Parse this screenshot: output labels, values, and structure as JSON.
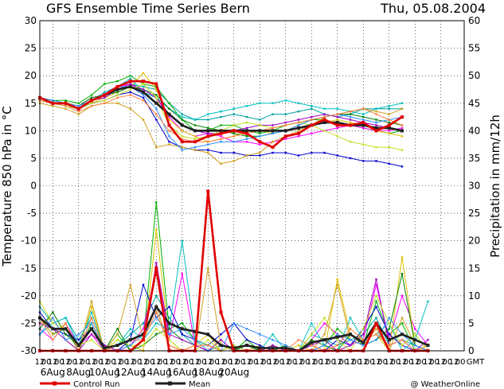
{
  "header": {
    "title": "GFS Ensemble Time Series Bern",
    "date": "Thu, 05.08.2004"
  },
  "footer": {
    "legend_control": "Control Run",
    "legend_mean": "Mean",
    "credit": "@ WeatherOnline"
  },
  "colors": {
    "control": "#e00000",
    "mean": "#202020",
    "members": [
      "#00a0a0",
      "#00b000",
      "#ff00ff",
      "#e0c000",
      "#0000d0",
      "#00c0c0",
      "#d0a020",
      "#008000",
      "#a000c0",
      "#c0e020",
      "#3090ff",
      "#ff8040"
    ]
  },
  "chart_data": {
    "type": "line",
    "x_unit": "hours from 05Aug 12 GMT, 12-hourly",
    "x_tick_labels": [
      "12",
      "00",
      "12",
      "00",
      "12",
      "00",
      "12",
      "00",
      "12",
      "00",
      "12",
      "00",
      "12",
      "00",
      "12",
      "00",
      "12",
      "00",
      "12",
      "00",
      "12",
      "00",
      "12",
      "00",
      "12",
      "00",
      "12",
      "00",
      "12",
      "00",
      "12",
      "00",
      "12",
      "00",
      "12",
      "00",
      "12",
      "00",
      "12",
      "00",
      "12",
      "00",
      "12",
      "00",
      "12",
      "00",
      "12",
      "00",
      "12",
      "00",
      "12",
      "00",
      "12",
      "00",
      "12",
      "00",
      "12",
      "00",
      "12",
      "00",
      "12",
      "00",
      "12",
      "00",
      "12",
      "00"
    ],
    "x_tick_suffix": "GMT",
    "date_labels": [
      "6Aug",
      "8Aug",
      "10Aug",
      "12Aug",
      "14Aug",
      "16Aug",
      "18Aug",
      "20Aug"
    ],
    "ylabel_left": "Temperature 850 hPa in °C",
    "ylabel_right": "Precipitation in mm/12h",
    "ylim_left": [
      -30,
      30
    ],
    "ylim_right": [
      0,
      60
    ],
    "yticks_left": [
      30,
      25,
      20,
      15,
      10,
      5,
      0,
      -5,
      -10,
      -15,
      -20,
      -25,
      -30
    ],
    "yticks_right": [
      60,
      55,
      50,
      45,
      40,
      35,
      30,
      25,
      20,
      15,
      10,
      5,
      0
    ],
    "temperature": {
      "control": [
        16,
        15,
        15,
        14,
        15.5,
        16.5,
        18,
        19,
        19,
        18.5,
        11,
        8,
        8,
        9,
        9.5,
        10,
        9.5,
        8,
        7,
        9,
        9.5,
        11,
        12,
        11,
        11,
        11.5,
        10,
        11,
        12.5
      ],
      "mean": [
        16,
        15,
        15,
        14,
        15.5,
        16.5,
        17.5,
        18,
        17,
        15,
        13,
        11,
        10,
        10,
        10,
        10,
        10,
        10,
        10,
        10,
        10.5,
        11,
        11.5,
        11.5,
        11,
        11,
        10.5,
        10.5,
        10
      ],
      "members": [
        [
          16,
          15.5,
          15,
          14.5,
          16,
          16.5,
          18,
          18.5,
          18,
          17.5,
          15,
          13,
          12,
          12,
          12.5,
          13,
          12.5,
          12,
          13,
          13,
          13.5,
          14,
          13,
          12.5,
          13,
          14,
          14,
          14,
          14
        ],
        [
          16,
          15.5,
          15.5,
          15,
          16.5,
          18.5,
          19,
          20,
          18.5,
          18,
          15,
          12,
          10,
          10,
          11,
          11,
          10,
          9.5,
          10,
          11,
          11.5,
          12,
          12,
          11,
          11,
          10.5,
          10,
          9.5,
          10
        ],
        [
          16,
          15,
          15,
          14.5,
          16,
          16.5,
          18,
          18.5,
          17,
          16,
          12.5,
          10,
          9,
          9.5,
          9,
          8,
          8,
          7.5,
          8,
          8.5,
          9,
          9.5,
          10,
          10.5,
          11,
          10.5,
          10,
          10,
          10.5
        ],
        [
          15.5,
          15,
          14.5,
          14,
          15,
          16,
          17,
          18,
          20.5,
          17.5,
          12,
          10,
          9,
          8,
          8.5,
          9,
          10,
          10,
          9.5,
          10,
          10.5,
          11,
          11.5,
          12,
          11.5,
          11,
          10,
          9.5,
          9
        ],
        [
          15.5,
          15,
          15,
          14,
          15,
          15.5,
          16.5,
          17,
          16,
          12,
          8,
          7,
          6.5,
          6.5,
          6,
          6,
          5.5,
          5.5,
          6,
          6,
          5.5,
          6,
          6,
          5.5,
          5,
          4.5,
          4.5,
          4,
          3.5
        ],
        [
          16,
          15,
          14.5,
          14,
          15.5,
          17,
          18,
          19.5,
          17,
          16,
          14,
          12.5,
          12,
          13,
          13.5,
          14,
          14.5,
          15,
          15,
          15.5,
          15,
          14.5,
          14,
          14,
          13.5,
          13,
          14,
          14.5,
          15
        ],
        [
          15,
          14.5,
          14,
          13,
          14.5,
          15,
          15,
          14,
          12,
          7,
          7.5,
          7,
          6.5,
          6,
          4,
          4.5,
          5.5,
          6,
          8,
          9,
          10,
          11,
          12.5,
          13,
          13.5,
          14,
          13.5,
          13,
          14
        ],
        [
          16,
          15,
          15,
          14.5,
          16,
          16.5,
          17,
          18,
          17.5,
          16.5,
          14,
          12,
          11,
          10.5,
          10,
          9.5,
          9,
          9,
          9.5,
          10,
          11,
          12,
          12.5,
          13,
          13,
          12.5,
          12,
          11.5,
          11
        ],
        [
          16,
          15,
          15,
          14,
          15.5,
          16,
          17.5,
          18.5,
          17.5,
          16,
          13,
          11,
          10,
          9.5,
          9.5,
          10,
          10.5,
          11,
          11,
          11.5,
          12,
          12.5,
          13,
          12.5,
          12,
          11.5,
          11,
          10.5,
          10
        ],
        [
          15.5,
          15,
          14.5,
          14,
          15,
          15.5,
          16.5,
          17.5,
          18.5,
          16,
          11,
          9,
          8.5,
          9,
          10,
          11,
          11.5,
          11,
          10.5,
          11,
          11.5,
          11,
          10,
          9,
          8,
          7.5,
          7,
          7,
          6.5
        ],
        [
          16,
          15.5,
          15,
          14.5,
          15.5,
          16.5,
          18,
          18,
          16.5,
          14,
          9,
          6.5,
          7,
          7.5,
          8,
          8,
          8.5,
          9,
          9.5,
          10,
          11,
          12,
          12.5,
          13,
          12.5,
          12,
          11.5,
          12,
          12.5
        ],
        [
          15.5,
          15,
          14.5,
          13.5,
          14.5,
          15,
          16,
          16.5,
          15.5,
          13,
          10,
          8.5,
          8,
          8,
          8.5,
          9,
          9.5,
          10,
          10.5,
          11,
          11.5,
          12,
          12.5,
          13,
          13.5,
          14,
          13,
          12,
          11
        ]
      ]
    },
    "precipitation": {
      "control": [
        0,
        0,
        0,
        0,
        0,
        0,
        0,
        0,
        2,
        15,
        0,
        0,
        0,
        29,
        7,
        0,
        0,
        0,
        0,
        0,
        0,
        0,
        0,
        0,
        0,
        0,
        5,
        0,
        0,
        0,
        0
      ],
      "mean": [
        6,
        4,
        4,
        1,
        4,
        0.5,
        1,
        2,
        3,
        8,
        5,
        4,
        3.5,
        3,
        1,
        0.5,
        1,
        0.5,
        0.5,
        0.5,
        0,
        1.5,
        2,
        2.5,
        3,
        1.5,
        5,
        2,
        3,
        2,
        1
      ],
      "members": [
        [
          8,
          5,
          6,
          2,
          6,
          0,
          1,
          3,
          5,
          10,
          6,
          3,
          1,
          0,
          1,
          0,
          1,
          0,
          0,
          1,
          0,
          3,
          2,
          1,
          2,
          3,
          6,
          1,
          2,
          1,
          0
        ],
        [
          6,
          3,
          4,
          0,
          5,
          0,
          3,
          0,
          2,
          27,
          4,
          5,
          2,
          1,
          0,
          0,
          2,
          0,
          1,
          0,
          0,
          0,
          1,
          4,
          2,
          1,
          9,
          3,
          5,
          0,
          1
        ],
        [
          4,
          2,
          5,
          1,
          3,
          0,
          0,
          1,
          4,
          15,
          2,
          14,
          1,
          0,
          0,
          1,
          0,
          0,
          0,
          0,
          0,
          2,
          5,
          3,
          1,
          2,
          12,
          2,
          10,
          4,
          1
        ],
        [
          5,
          6,
          2,
          0,
          8,
          0,
          2,
          1,
          0,
          22,
          2,
          0,
          1,
          3,
          0,
          0,
          0,
          1,
          0,
          0,
          1,
          0,
          0,
          13,
          3,
          2,
          3,
          0,
          17,
          1,
          0
        ],
        [
          7,
          4,
          3,
          2,
          4,
          1,
          0,
          2,
          12,
          6,
          8,
          3,
          2,
          1,
          3,
          5,
          2,
          1,
          0,
          0,
          0,
          1,
          0,
          2,
          1,
          4,
          8,
          3,
          1,
          0,
          0
        ],
        [
          3,
          5,
          6,
          1,
          7,
          0,
          1,
          4,
          2,
          5,
          4,
          20,
          2,
          1,
          0,
          1,
          0,
          0,
          3,
          0,
          0,
          5,
          1,
          0,
          6,
          2,
          3,
          5,
          0,
          2,
          9
        ],
        [
          6,
          3,
          5,
          0,
          9,
          0,
          3,
          12,
          2,
          8,
          1,
          0,
          0,
          15,
          1,
          0,
          0,
          0,
          0,
          0,
          0,
          0,
          3,
          12,
          2,
          1,
          4,
          0,
          6,
          1,
          0
        ],
        [
          4,
          7,
          3,
          1,
          4,
          0,
          4,
          0,
          1,
          3,
          4,
          2,
          1,
          1,
          0,
          0,
          1,
          0,
          0,
          1,
          0,
          2,
          1,
          0,
          3,
          1,
          2,
          4,
          14,
          1,
          0
        ],
        [
          5,
          4,
          2,
          0,
          3,
          1,
          0,
          0,
          2,
          16,
          3,
          2,
          1,
          0,
          2,
          0,
          0,
          0,
          1,
          0,
          0,
          1,
          2,
          0,
          1,
          3,
          13,
          1,
          2,
          0,
          2
        ],
        [
          9,
          5,
          4,
          1,
          2,
          0,
          2,
          1,
          1,
          4,
          2,
          0,
          0,
          2,
          0,
          1,
          0,
          0,
          0,
          0,
          0,
          3,
          6,
          2,
          0,
          4,
          10,
          5,
          1,
          3,
          0
        ],
        [
          3,
          6,
          2,
          3,
          5,
          0,
          0,
          1,
          3,
          6,
          3,
          4,
          2,
          0,
          0,
          5,
          4,
          3,
          2,
          1,
          0,
          0,
          1,
          3,
          2,
          1,
          2,
          6,
          3,
          1,
          0
        ],
        [
          6,
          2,
          5,
          0,
          6,
          0,
          1,
          2,
          2,
          7,
          1,
          0,
          1,
          1,
          0,
          0,
          0,
          0,
          0,
          0,
          2,
          1,
          0,
          1,
          4,
          2,
          3,
          1,
          2,
          0,
          1
        ]
      ]
    }
  }
}
